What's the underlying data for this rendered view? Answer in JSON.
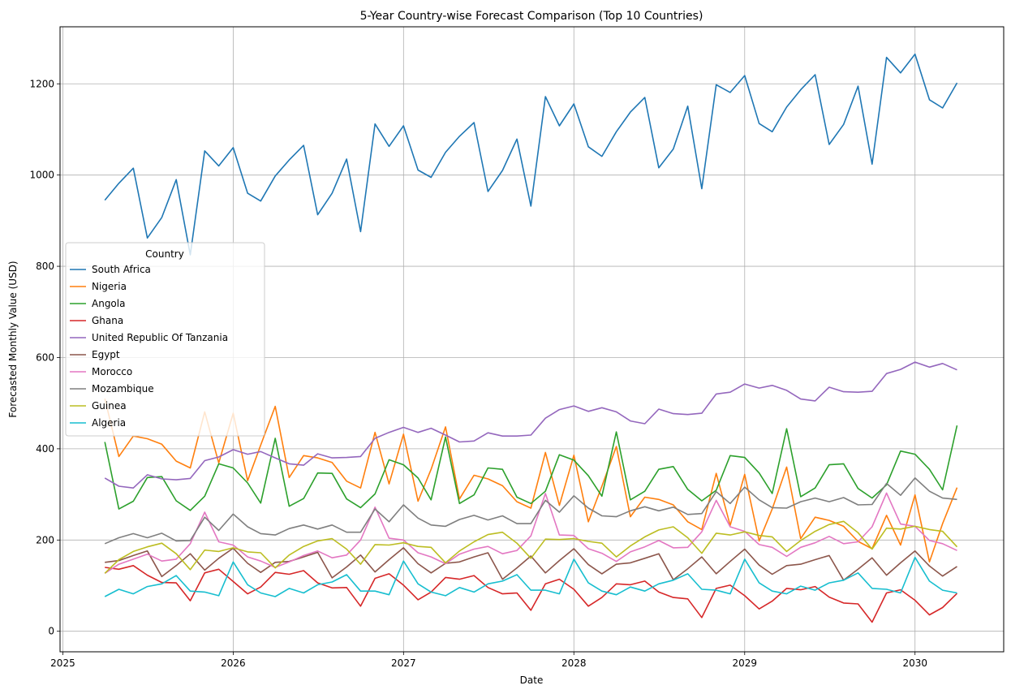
{
  "chart_data": {
    "type": "line",
    "title": "5-Year Country-wise Forecast Comparison (Top 10 Countries)",
    "xlabel": "Date",
    "ylabel": "Forecasted Monthly Value (USD)",
    "x_ticks": [
      "2025",
      "2026",
      "2027",
      "2028",
      "2029",
      "2030"
    ],
    "y_ticks": [
      0,
      200,
      400,
      600,
      800,
      1000,
      1200
    ],
    "ylim": [
      -45,
      1325
    ],
    "xlim": [
      "2024-12-26",
      "2030-07-10"
    ],
    "grid": true,
    "legend": {
      "title": "Country",
      "placement": "center-left"
    },
    "x": [
      "2025-04",
      "2025-05",
      "2025-06",
      "2025-07",
      "2025-08",
      "2025-09",
      "2025-10",
      "2025-11",
      "2025-12",
      "2026-01",
      "2026-02",
      "2026-03",
      "2026-04",
      "2026-05",
      "2026-06",
      "2026-07",
      "2026-08",
      "2026-09",
      "2026-10",
      "2026-11",
      "2026-12",
      "2027-01",
      "2027-02",
      "2027-03",
      "2027-04",
      "2027-05",
      "2027-06",
      "2027-07",
      "2027-08",
      "2027-09",
      "2027-10",
      "2027-11",
      "2027-12",
      "2028-01",
      "2028-02",
      "2028-03",
      "2028-04",
      "2028-05",
      "2028-06",
      "2028-07",
      "2028-08",
      "2028-09",
      "2028-10",
      "2028-11",
      "2028-12",
      "2029-01",
      "2029-02",
      "2029-03",
      "2029-04",
      "2029-05",
      "2029-06",
      "2029-07",
      "2029-08",
      "2029-09",
      "2029-10",
      "2029-11",
      "2029-12",
      "2030-01",
      "2030-02",
      "2030-03",
      "2030-04"
    ],
    "series": [
      {
        "name": "South Africa",
        "color": "#1f77b4",
        "values": [
          945,
          982,
          1015,
          862,
          907,
          990,
          825,
          1053,
          1020,
          1060,
          960,
          943,
          998,
          1033,
          1065,
          913,
          960,
          1035,
          876,
          1112,
          1063,
          1108,
          1011,
          995,
          1050,
          1085,
          1115,
          964,
          1010,
          1079,
          932,
          1172,
          1108,
          1156,
          1062,
          1041,
          1095,
          1138,
          1170,
          1016,
          1057,
          1151,
          970,
          1198,
          1181,
          1218,
          1113,
          1095,
          1149,
          1187,
          1220,
          1067,
          1111,
          1195,
          1024,
          1258,
          1224,
          1265,
          1165,
          1147,
          1202
        ]
      },
      {
        "name": "Nigeria",
        "color": "#ff7f0e",
        "values": [
          510,
          383,
          428,
          422,
          410,
          373,
          358,
          481,
          369,
          478,
          330,
          408,
          493,
          337,
          385,
          380,
          370,
          329,
          314,
          436,
          323,
          432,
          285,
          355,
          448,
          290,
          342,
          334,
          319,
          284,
          270,
          392,
          276,
          386,
          240,
          318,
          405,
          251,
          294,
          289,
          277,
          240,
          223,
          346,
          232,
          344,
          198,
          268,
          360,
          203,
          250,
          243,
          230,
          197,
          181,
          254,
          189,
          299,
          152,
          236,
          315
        ]
      },
      {
        "name": "Angola",
        "color": "#2ca02c",
        "values": [
          415,
          268,
          285,
          337,
          339,
          286,
          265,
          296,
          367,
          358,
          325,
          281,
          423,
          274,
          291,
          347,
          346,
          290,
          271,
          301,
          376,
          365,
          336,
          288,
          426,
          280,
          299,
          358,
          355,
          294,
          280,
          307,
          387,
          375,
          341,
          296,
          437,
          288,
          307,
          355,
          361,
          311,
          286,
          309,
          385,
          381,
          347,
          302,
          444,
          295,
          314,
          365,
          367,
          313,
          292,
          321,
          395,
          388,
          355,
          310,
          451
        ]
      },
      {
        "name": "Ghana",
        "color": "#d62728",
        "values": [
          140,
          136,
          144,
          123,
          107,
          106,
          67,
          128,
          136,
          109,
          82,
          97,
          129,
          125,
          133,
          106,
          95,
          96,
          55,
          116,
          126,
          101,
          69,
          86,
          118,
          114,
          122,
          96,
          82,
          84,
          46,
          104,
          114,
          92,
          55,
          74,
          104,
          102,
          110,
          86,
          74,
          71,
          30,
          94,
          101,
          78,
          49,
          66,
          94,
          91,
          98,
          75,
          62,
          60,
          20,
          84,
          91,
          68,
          36,
          52,
          83
        ]
      },
      {
        "name": "United Republic Of Tanzania",
        "color": "#9467bd",
        "values": [
          336,
          318,
          314,
          343,
          334,
          332,
          335,
          374,
          382,
          398,
          388,
          394,
          380,
          367,
          364,
          389,
          380,
          381,
          383,
          423,
          436,
          447,
          436,
          445,
          430,
          415,
          417,
          435,
          428,
          428,
          430,
          467,
          486,
          494,
          482,
          490,
          481,
          461,
          455,
          487,
          477,
          475,
          478,
          520,
          524,
          542,
          533,
          539,
          528,
          509,
          505,
          535,
          525,
          524,
          526,
          565,
          574,
          590,
          579,
          587,
          573
        ]
      },
      {
        "name": "Egypt",
        "color": "#8c564b",
        "values": [
          151,
          155,
          166,
          176,
          120,
          144,
          170,
          134,
          160,
          182,
          149,
          129,
          151,
          153,
          163,
          173,
          117,
          141,
          167,
          130,
          157,
          183,
          148,
          128,
          149,
          152,
          163,
          172,
          114,
          139,
          165,
          128,
          155,
          181,
          146,
          126,
          147,
          150,
          160,
          170,
          113,
          137,
          163,
          126,
          153,
          180,
          145,
          125,
          144,
          147,
          157,
          166,
          112,
          136,
          161,
          123,
          150,
          176,
          143,
          121,
          142
        ]
      },
      {
        "name": "Morocco",
        "color": "#e377c2",
        "values": [
          127,
          147,
          158,
          169,
          154,
          158,
          192,
          261,
          196,
          189,
          163,
          154,
          140,
          152,
          166,
          176,
          161,
          167,
          200,
          272,
          204,
          200,
          172,
          163,
          148,
          169,
          180,
          186,
          170,
          177,
          209,
          302,
          211,
          210,
          181,
          171,
          153,
          174,
          185,
          199,
          183,
          184,
          218,
          287,
          229,
          219,
          190,
          184,
          164,
          184,
          194,
          208,
          192,
          196,
          229,
          303,
          235,
          230,
          199,
          192,
          177
        ]
      },
      {
        "name": "Mozambique",
        "color": "#7f7f7f",
        "values": [
          192,
          205,
          214,
          205,
          215,
          198,
          199,
          250,
          221,
          257,
          229,
          214,
          211,
          225,
          233,
          224,
          233,
          217,
          217,
          268,
          240,
          277,
          248,
          233,
          230,
          245,
          254,
          244,
          253,
          236,
          236,
          287,
          261,
          297,
          270,
          253,
          251,
          264,
          273,
          264,
          272,
          256,
          258,
          306,
          280,
          316,
          288,
          271,
          270,
          284,
          292,
          284,
          293,
          277,
          278,
          324,
          298,
          336,
          307,
          292,
          289
        ]
      },
      {
        "name": "Guinea",
        "color": "#bcbd22",
        "values": [
          127,
          157,
          175,
          185,
          193,
          170,
          135,
          178,
          175,
          183,
          174,
          172,
          139,
          167,
          186,
          198,
          203,
          180,
          147,
          190,
          189,
          194,
          186,
          184,
          150,
          176,
          196,
          212,
          217,
          193,
          160,
          202,
          201,
          203,
          197,
          193,
          163,
          187,
          207,
          222,
          229,
          205,
          171,
          215,
          211,
          218,
          210,
          207,
          175,
          199,
          219,
          234,
          241,
          216,
          180,
          226,
          224,
          230,
          223,
          219,
          185
        ]
      },
      {
        "name": "Algeria",
        "color": "#17becf",
        "values": [
          76,
          92,
          82,
          98,
          104,
          122,
          88,
          86,
          78,
          152,
          102,
          84,
          76,
          94,
          84,
          102,
          108,
          124,
          88,
          88,
          80,
          154,
          104,
          86,
          78,
          96,
          86,
          104,
          110,
          124,
          90,
          90,
          82,
          158,
          106,
          88,
          80,
          97,
          88,
          104,
          112,
          126,
          92,
          90,
          82,
          158,
          106,
          88,
          82,
          99,
          90,
          106,
          112,
          128,
          94,
          92,
          84,
          162,
          110,
          90,
          84
        ]
      }
    ]
  }
}
